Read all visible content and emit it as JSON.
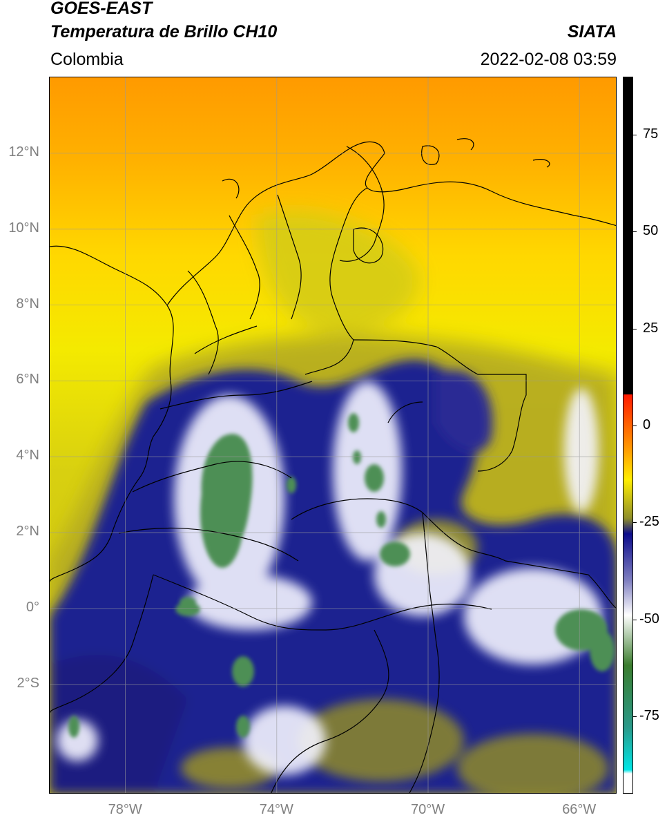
{
  "header": {
    "satellite": "GOES-EAST",
    "product": "Temperatura de Brillo CH10",
    "source": "SIATA",
    "region": "Colombia",
    "datetime": "2022-02-08 03:59"
  },
  "map": {
    "lon_range": [
      -80.0,
      -65.0
    ],
    "lat_range": [
      -4.9,
      14.0
    ],
    "lon_ticks": [
      "78°W",
      "74°W",
      "70°W",
      "66°W"
    ],
    "lat_ticks": [
      "12°N",
      "10°N",
      "8°N",
      "6°N",
      "4°N",
      "2°N",
      "0°",
      "2°S"
    ],
    "gridlines": true,
    "colors": {
      "warm_north": "#ff9a00",
      "warm_mid": "#ffd500",
      "yellow": "#f4e300",
      "olive": "#b9ad1e",
      "dark_blue": "#1a1a80",
      "white_cloud": "#ffffff",
      "green_core": "#4e8f55",
      "border_line": "#000000"
    }
  },
  "colorbar": {
    "labels": [
      "75",
      "50",
      "25",
      "0",
      "-25",
      "-50",
      "-75"
    ],
    "range": [
      -95,
      90
    ],
    "colors": {
      "black": "#000000",
      "red": "#ff1a00",
      "orange": "#ff9a00",
      "yellow": "#ffee00",
      "olive": "#8f8f2a",
      "navy": "#0d0d8c",
      "white": "#ffffff",
      "green": "#3b7d2e",
      "cyan": "#00e6e6"
    }
  }
}
